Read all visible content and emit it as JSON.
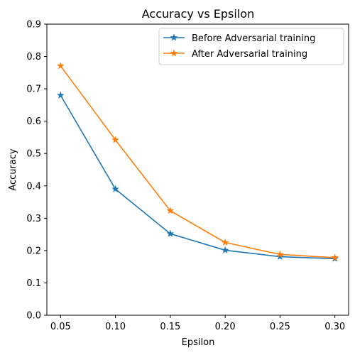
{
  "chart_data": {
    "type": "line",
    "title": "Accuracy vs Epsilon",
    "xlabel": "Epsilon",
    "ylabel": "Accuracy",
    "x": [
      0.05,
      0.1,
      0.15,
      0.2,
      0.25,
      0.3
    ],
    "x_tick_labels": [
      "0.05",
      "0.10",
      "0.15",
      "0.20",
      "0.25",
      "0.30"
    ],
    "y_ticks": [
      0.0,
      0.1,
      0.2,
      0.3,
      0.4,
      0.5,
      0.6,
      0.7,
      0.8,
      0.9
    ],
    "y_tick_labels": [
      "0.0",
      "0.1",
      "0.2",
      "0.3",
      "0.4",
      "0.5",
      "0.6",
      "0.7",
      "0.8",
      "0.9"
    ],
    "xlim": [
      0.0375,
      0.3125
    ],
    "ylim": [
      0.0,
      0.9
    ],
    "grid": false,
    "legend_position": "top-right",
    "series": [
      {
        "name": "Before Adversarial training",
        "color": "#1f77b4",
        "marker": "star",
        "values": [
          0.68,
          0.39,
          0.252,
          0.201,
          0.181,
          0.175
        ]
      },
      {
        "name": "After Adversarial training",
        "color": "#ff7f0e",
        "marker": "star",
        "values": [
          0.771,
          0.542,
          0.323,
          0.225,
          0.188,
          0.178
        ]
      }
    ]
  }
}
